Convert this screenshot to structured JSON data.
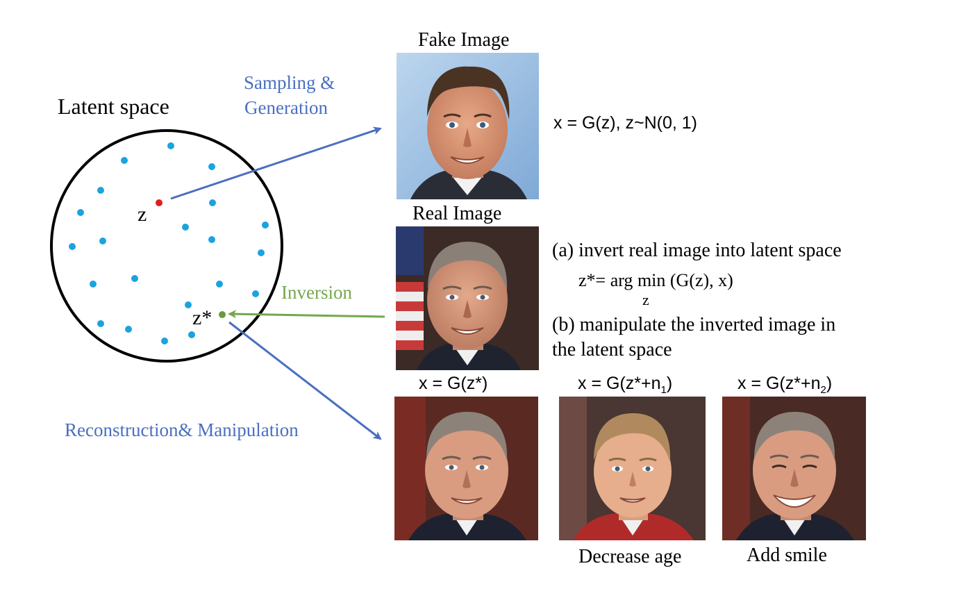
{
  "latent": {
    "title": "Latent space",
    "z_label": "z",
    "zstar_label": "z*"
  },
  "arrows": {
    "sampling_line1": "Sampling &",
    "sampling_line2": "Generation",
    "inversion": "Inversion",
    "reconstruction": "Reconstruction& Manipulation"
  },
  "fake": {
    "title": "Fake Image",
    "formula": "x = G(z), z~N(0, 1)"
  },
  "real": {
    "title": "Real Image",
    "step_a": "(a) invert real image into latent space",
    "argmin_lhs": "z*= arg",
    "argmin_min": "min",
    "argmin_rest": "(G(z), x)",
    "argmin_sub": "z",
    "step_b_line1": "(b) manipulate the inverted image in",
    "step_b_line2": "the latent space"
  },
  "outputs": {
    "recon_caption": "x = G(z*)",
    "n1_caption_prefix": "x = G(z*+n",
    "n1_sub": "1",
    "n1_suffix": ")",
    "n2_caption_prefix": "x = G(z*+n",
    "n2_sub": "2",
    "n2_suffix": ")",
    "decrease_age": "Decrease age",
    "add_smile": "Add smile"
  },
  "colors": {
    "blue_text": "#4a6fc1",
    "blue_arrow": "#4a6fc1",
    "green": "#73a84a",
    "dot_blue": "#1aa3e0",
    "dot_red": "#e01e1e",
    "dot_green": "#6a9a3a"
  }
}
